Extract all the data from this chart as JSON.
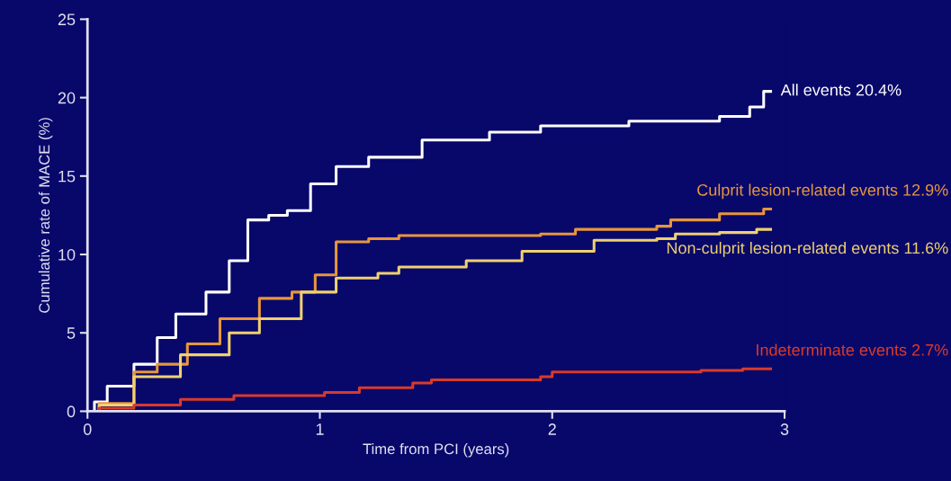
{
  "chart_data": {
    "type": "step",
    "xlabel": "Time from PCI (years)",
    "ylabel": "Cumulative rate of MACE (%)",
    "xlim": [
      0,
      3
    ],
    "xticks": [
      0,
      1,
      2,
      3
    ],
    "ylim": [
      0,
      25
    ],
    "yticks": [
      0,
      5,
      10,
      15,
      20,
      25
    ],
    "grid": false,
    "legend": false,
    "series": [
      {
        "name": "All events 20.4%",
        "color": "#ffffff",
        "x": [
          0,
          0.03,
          0.085,
          0.2,
          0.3,
          0.38,
          0.51,
          0.61,
          0.69,
          0.78,
          0.86,
          0.96,
          1.07,
          1.21,
          1.44,
          1.73,
          1.95,
          2.33,
          2.72,
          2.85,
          2.91,
          2.94
        ],
        "values": [
          0,
          0.6,
          1.6,
          3.0,
          4.7,
          6.2,
          7.6,
          9.6,
          12.2,
          12.5,
          12.8,
          14.5,
          15.6,
          16.2,
          17.3,
          17.8,
          18.2,
          18.5,
          18.8,
          19.4,
          20.4,
          20.4
        ]
      },
      {
        "name": "Culprit lesion-related events 12.9%",
        "color": "#e8963c",
        "x": [
          0,
          0.05,
          0.2,
          0.3,
          0.43,
          0.57,
          0.74,
          0.88,
          0.98,
          1.07,
          1.21,
          1.34,
          1.52,
          1.95,
          2.1,
          2.45,
          2.51,
          2.72,
          2.91,
          2.94
        ],
        "values": [
          0,
          0.5,
          2.5,
          3.0,
          4.3,
          5.9,
          7.2,
          7.6,
          8.7,
          10.8,
          11.0,
          11.2,
          11.2,
          11.3,
          11.6,
          11.8,
          12.2,
          12.6,
          12.9,
          12.9
        ]
      },
      {
        "name": "Non-culprit lesion-related events 11.6%",
        "color": "#f0d070",
        "x": [
          0,
          0.05,
          0.2,
          0.4,
          0.61,
          0.74,
          0.92,
          1.07,
          1.25,
          1.34,
          1.63,
          1.87,
          2.18,
          2.45,
          2.53,
          2.72,
          2.88,
          2.94
        ],
        "values": [
          0,
          0.4,
          2.2,
          3.6,
          5.0,
          5.9,
          7.6,
          8.5,
          8.8,
          9.2,
          9.6,
          10.2,
          10.9,
          11.0,
          11.3,
          11.4,
          11.6,
          11.6
        ]
      },
      {
        "name": "Indeterminate events 2.7%",
        "color": "#d83a2a",
        "x": [
          0,
          0.05,
          0.2,
          0.4,
          0.63,
          1.02,
          1.17,
          1.4,
          1.48,
          1.95,
          2.0,
          2.64,
          2.82,
          2.94
        ],
        "values": [
          0,
          0.2,
          0.4,
          0.75,
          1.0,
          1.2,
          1.5,
          1.8,
          2.0,
          2.2,
          2.5,
          2.6,
          2.7,
          2.7
        ]
      }
    ]
  }
}
